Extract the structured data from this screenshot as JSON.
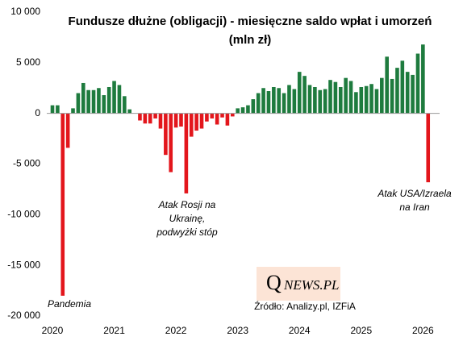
{
  "chart_data": {
    "type": "bar",
    "title": [
      "Fundusze dłużne (obligacji) - miesięczne saldo wpłat i umorzeń",
      "(mln zł)"
    ],
    "categories": [
      "2020",
      null,
      null,
      null,
      null,
      null,
      null,
      null,
      null,
      null,
      null,
      null,
      "2021",
      null,
      null,
      null,
      null,
      null,
      null,
      null,
      null,
      null,
      null,
      null,
      "2022",
      null,
      null,
      null,
      null,
      null,
      null,
      null,
      null,
      null,
      null,
      null,
      "2023",
      null,
      null,
      null,
      null,
      null,
      null,
      null,
      null,
      null,
      null,
      null,
      "2024",
      null,
      null,
      null,
      null,
      null,
      null,
      null,
      null,
      null,
      null,
      null,
      "2025",
      null,
      null,
      null,
      null,
      null,
      null,
      null,
      null,
      null,
      null,
      null,
      "2026",
      null
    ],
    "values": [
      800,
      800,
      -18000,
      -3400,
      500,
      2000,
      3000,
      2300,
      2300,
      2500,
      1800,
      2600,
      3200,
      2800,
      1700,
      400,
      0,
      -700,
      -1000,
      -1000,
      -500,
      -1500,
      -4100,
      -5800,
      -1400,
      -1300,
      -7900,
      -2300,
      -1700,
      -1500,
      -800,
      -500,
      -1100,
      -400,
      -1200,
      -300,
      500,
      600,
      800,
      1400,
      2000,
      2500,
      2200,
      2600,
      2500,
      2000,
      2800,
      2400,
      4100,
      3700,
      2800,
      2600,
      2300,
      2400,
      3300,
      3100,
      2600,
      3500,
      3200,
      2100,
      2600,
      2700,
      2900,
      2400,
      3500,
      5600,
      3400,
      4500,
      5200,
      4100,
      3800,
      5900,
      6800,
      -6800
    ],
    "positive_color": "#1e7b3e",
    "negative_color": "#e3161c",
    "ylim": [
      -20000,
      10000
    ],
    "yticks": [
      {
        "value": -20000,
        "label": "-20 000"
      },
      {
        "value": -15000,
        "label": "-15 000"
      },
      {
        "value": -10000,
        "label": "-10 000"
      },
      {
        "value": -5000,
        "label": "-5 000"
      },
      0,
      {
        "value": 5000,
        "label": "5 000"
      },
      {
        "value": 10000,
        "label": "10 000"
      }
    ],
    "grid": false,
    "annotations": [
      [
        "Pandemia"
      ],
      [
        "Atak Rosji na",
        "Ukrainę,",
        "podwyżki stóp"
      ],
      [
        "Atak USA/Izraela",
        "na Iran"
      ]
    ],
    "source": "Źródło: Analizy.pl, IZFiA",
    "logo": {
      "q": "Q",
      "rest": "NEWS.PL"
    }
  }
}
